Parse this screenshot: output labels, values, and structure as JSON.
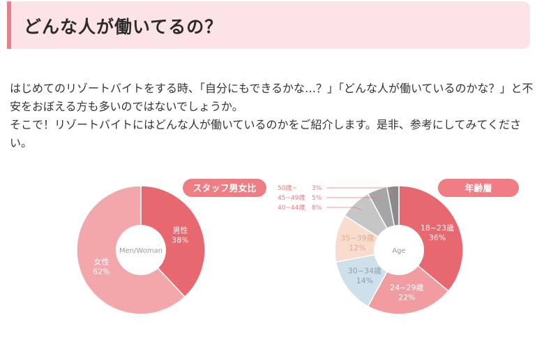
{
  "section": {
    "heading": "どんな人が働いてるの？",
    "intro_paragraphs": [
      "はじめてのリゾートバイトをする時、「自分にもできるかな…？」「どんな人が働いているのかな？」と不安をおぼえる方も多いのではないでしょうか。",
      "そこで！リゾートバイトにはどんな人が働いているのかをご紹介します。是非、参考にしてみてください。"
    ]
  },
  "colors": {
    "heading_bg": "#fce4e6",
    "heading_border": "#e8828a",
    "badge": "#ef7d83"
  },
  "chart_data": [
    {
      "type": "pie",
      "title": "スタッフ男女比",
      "center_label": "Men/Woman",
      "slices": [
        {
          "label": "男性",
          "value": 38,
          "value_text": "38%",
          "color": "#e8686f",
          "text_color": "#ffffff"
        },
        {
          "label": "女性",
          "value": 62,
          "value_text": "62%",
          "color": "#f2a7ab",
          "text_color": "#ffffff"
        }
      ]
    },
    {
      "type": "pie",
      "title": "年齢層",
      "center_label": "Age",
      "slices": [
        {
          "label": "18~23歳",
          "value": 36,
          "value_text": "36%",
          "color": "#e8686f",
          "text_color": "#ffffff",
          "legend": false
        },
        {
          "label": "24~29歳",
          "value": 22,
          "value_text": "22%",
          "color": "#f09ca1",
          "text_color": "#ffffff",
          "legend": false
        },
        {
          "label": "30~34歳",
          "value": 14,
          "value_text": "14%",
          "color": "#cfe0ea",
          "text_color": "#8aa0b0",
          "legend": false
        },
        {
          "label": "35~39歳",
          "value": 12,
          "value_text": "12%",
          "color": "#f8dccd",
          "text_color": "#e8a98e",
          "legend": false
        },
        {
          "label": "40~44歳",
          "value": 8,
          "value_text": "8%",
          "color": "#c6c6c6",
          "text_color": "#e87880",
          "legend": true
        },
        {
          "label": "45~49歳",
          "value": 5,
          "value_text": "5%",
          "color": "#a6a6a6",
          "text_color": "#e87880",
          "legend": true
        },
        {
          "label": "50歳~",
          "value": 3,
          "value_text": "3%",
          "color": "#8a8a8a",
          "text_color": "#e87880",
          "legend": true
        }
      ]
    }
  ]
}
